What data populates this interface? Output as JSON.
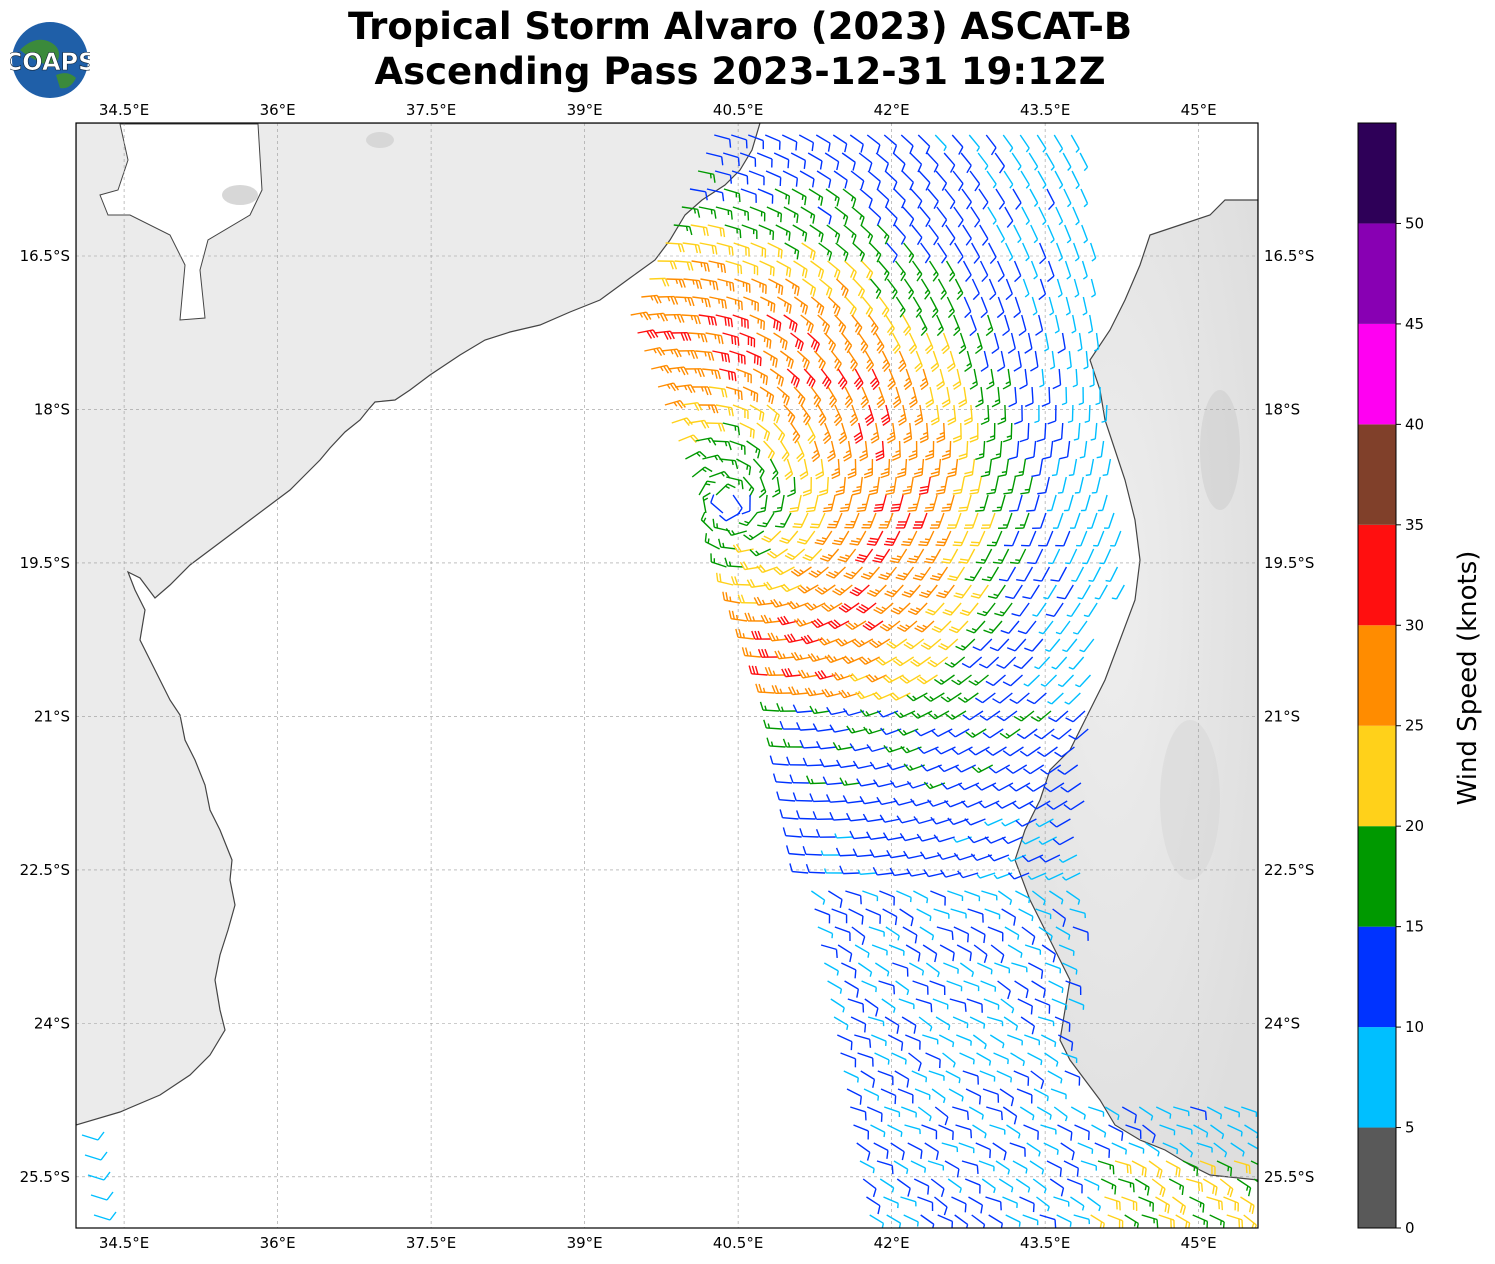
{
  "title_line1": "Tropical Storm Alvaro (2023) ASCAT-B",
  "title_line2": "Ascending Pass 2023-12-31 19:12Z",
  "logo_text": "COAPS",
  "map": {
    "lon_ticks": [
      "34.5°E",
      "36°E",
      "37.5°E",
      "39°E",
      "40.5°E",
      "42°E",
      "43.5°E",
      "45°E"
    ],
    "lat_ticks": [
      "16.5°S",
      "18°S",
      "19.5°S",
      "21°S",
      "22.5°S",
      "24°S",
      "25.5°S"
    ],
    "lon_range": [
      34.03,
      45.58
    ],
    "lat_range": [
      -15.2,
      -26.0
    ],
    "gridlines": true,
    "land_color": "#e8e8e8",
    "ocean_color": "#ffffff",
    "coastline_color": "#444444"
  },
  "colorbar": {
    "label": "Wind Speed (knots)",
    "ticks": [
      "0",
      "5",
      "10",
      "15",
      "20",
      "25",
      "30",
      "35",
      "40",
      "45",
      "50"
    ],
    "bins": [
      {
        "min": 0,
        "max": 5,
        "color": "#595959"
      },
      {
        "min": 5,
        "max": 10,
        "color": "#00bfff"
      },
      {
        "min": 10,
        "max": 15,
        "color": "#0033ff"
      },
      {
        "min": 15,
        "max": 20,
        "color": "#009900"
      },
      {
        "min": 20,
        "max": 25,
        "color": "#ffd11a"
      },
      {
        "min": 25,
        "max": 30,
        "color": "#ff8c00"
      },
      {
        "min": 30,
        "max": 35,
        "color": "#ff0f0f"
      },
      {
        "min": 35,
        "max": 40,
        "color": "#80402a"
      },
      {
        "min": 40,
        "max": 45,
        "color": "#ff00f2"
      },
      {
        "min": 45,
        "max": 50,
        "color": "#8800b3"
      },
      {
        "min": 50,
        "max": 55,
        "color": "#2e0058"
      }
    ]
  },
  "chart_data": {
    "type": "wind-barb map",
    "title": "Tropical Storm Alvaro (2023) ASCAT-B Ascending Pass 2023-12-31 19:12Z",
    "colorbar_label": "Wind Speed (knots)",
    "swath_lon_range": [
      39.3,
      45.6
    ],
    "swath_lat_range": [
      -15.2,
      -26.0
    ],
    "storm_center_approx": {
      "lon": 40.4,
      "lat": -18.9
    },
    "max_wind_knots_approx": 32,
    "max_wind_locations_approx": [
      {
        "lon": 41.8,
        "lat": -17.9,
        "speed_kt": 32
      },
      {
        "lon": 41.5,
        "lat": -20.5,
        "speed_kt": 31
      }
    ],
    "wind_speed_zones_approx": [
      {
        "region": "near-center ring west/south of center",
        "speed_kt_range": [
          20,
          30
        ]
      },
      {
        "region": "eastern swath near Madagascar coast",
        "speed_kt_range": [
          10,
          20
        ]
      },
      {
        "region": "southern swath 22.5°S-25.5°S",
        "speed_kt_range": [
          5,
          15
        ]
      },
      {
        "region": "far southeast corner near 45°E 25.7°S",
        "speed_kt_range": [
          20,
          30
        ]
      }
    ]
  }
}
